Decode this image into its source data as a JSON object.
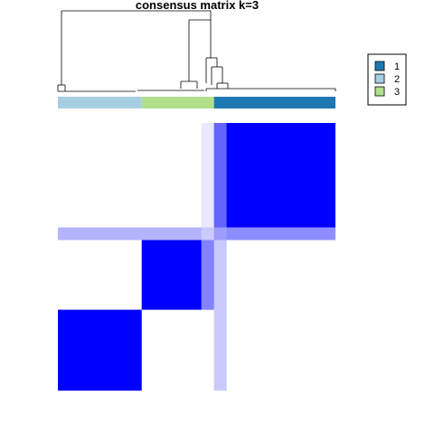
{
  "chart_data": {
    "type": "heatmap",
    "title": "consensus matrix k=3",
    "color_low": "#ffffff",
    "color_high": "#0000ff",
    "value_range": [
      0,
      1
    ],
    "clusters": [
      {
        "label": "2",
        "color": "#a6cee3",
        "size": 29
      },
      {
        "label": "3",
        "color": "#b2df8a",
        "size": 25
      },
      {
        "label": "1",
        "color": "#1f78b4",
        "size": 42
      }
    ],
    "order": [
      "2",
      "3",
      "1"
    ],
    "consensus": [
      [
        1.0,
        0.0,
        0.0
      ],
      [
        0.0,
        1.0,
        0.0
      ],
      [
        0.0,
        0.0,
        1.0
      ]
    ],
    "annotations": [
      {
        "label": "",
        "fuzzy_rows": "cluster 1 first rows",
        "value": 0.35
      }
    ],
    "legend": {
      "position": "top-right",
      "entries": [
        {
          "label": "1",
          "color": "#1f78b4"
        },
        {
          "label": "2",
          "color": "#a6cee3"
        },
        {
          "label": "3",
          "color": "#b2df8a"
        }
      ]
    }
  }
}
